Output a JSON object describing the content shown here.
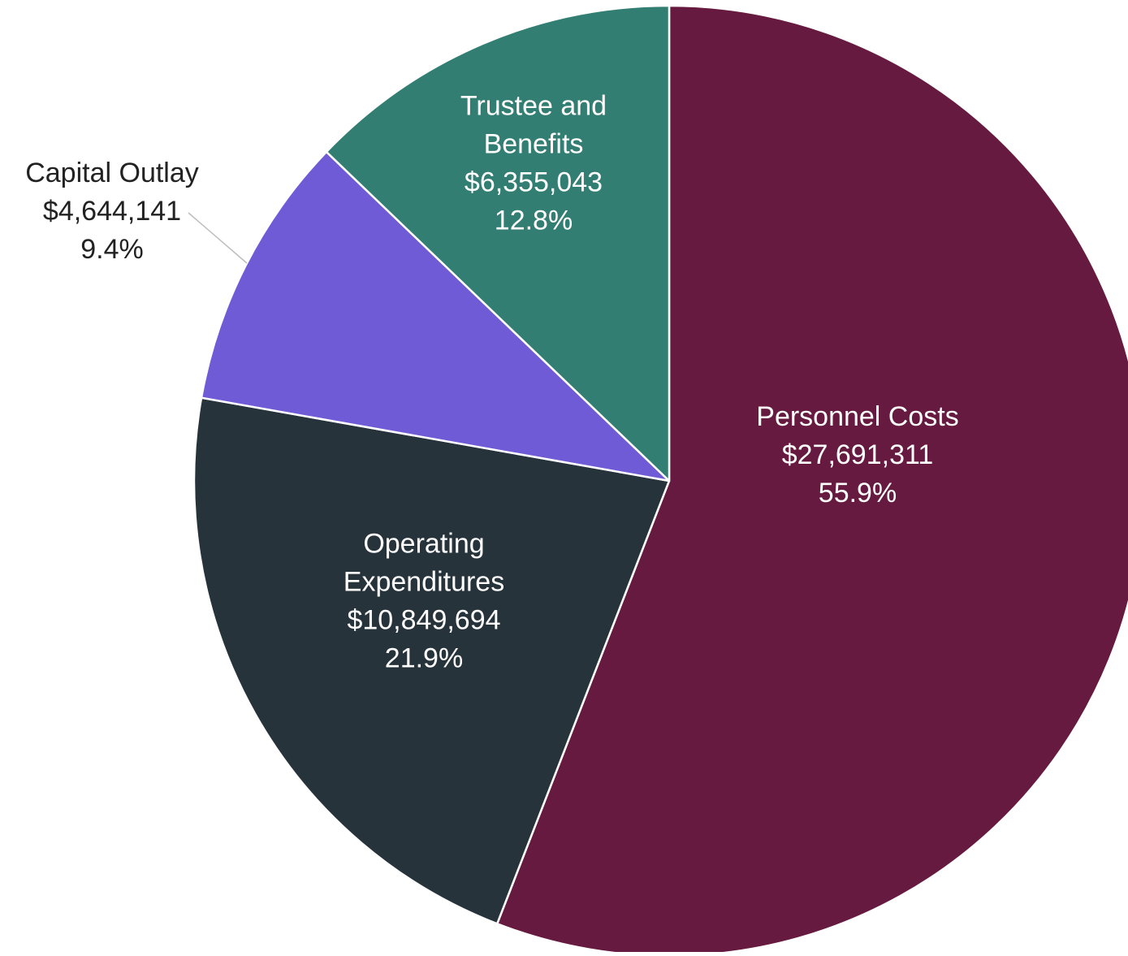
{
  "chart_data": {
    "type": "pie",
    "title": "",
    "slices": [
      {
        "label_lines": [
          "Personnel Costs"
        ],
        "value": 27691311,
        "value_label": "$27,691,311",
        "percent_label": "55.9%",
        "color": "#661a40",
        "label_color": "#ffffff",
        "label_placement": "inside"
      },
      {
        "label_lines": [
          "Operating",
          "Expenditures"
        ],
        "value": 10849694,
        "value_label": "$10,849,694",
        "percent_label": "21.9%",
        "color": "#27333b",
        "label_color": "#ffffff",
        "label_placement": "inside"
      },
      {
        "label_lines": [
          "Capital Outlay"
        ],
        "value": 4644141,
        "value_label": "$4,644,141",
        "percent_label": "9.4%",
        "color": "#705bd6",
        "label_color": "#222222",
        "label_placement": "outside"
      },
      {
        "label_lines": [
          "Trustee and",
          "Benefits"
        ],
        "value": 6355043,
        "value_label": "$6,355,043",
        "percent_label": "12.8%",
        "color": "#327e72",
        "label_color": "#ffffff",
        "label_placement": "inside"
      }
    ],
    "start_angle": "12 o'clock",
    "direction": "clockwise",
    "legend": "none"
  }
}
